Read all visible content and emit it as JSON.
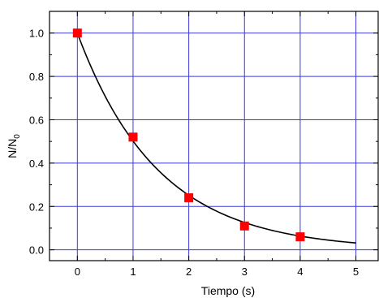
{
  "chart_data": {
    "type": "scatter",
    "title": "",
    "xlabel": "Tiempo (s)",
    "ylabel_main": "N/N",
    "ylabel_sub": "0",
    "xlim": [
      -0.5,
      5.4
    ],
    "ylim": [
      -0.05,
      1.1
    ],
    "x_ticks": [
      0,
      1,
      2,
      3,
      4,
      5
    ],
    "x_tick_labels": [
      "0",
      "1",
      "2",
      "3",
      "4",
      "5"
    ],
    "y_ticks": [
      0.0,
      0.2,
      0.4,
      0.6,
      0.8,
      1.0
    ],
    "y_tick_labels": [
      "0.0",
      "0.2",
      "0.4",
      "0.6",
      "0.8",
      "1.0"
    ],
    "grid": true,
    "series": [
      {
        "type": "scatter",
        "marker": "square",
        "color": "#ff0000",
        "x": [
          0,
          1,
          2,
          3,
          4
        ],
        "y": [
          1.0,
          0.52,
          0.24,
          0.11,
          0.06
        ]
      },
      {
        "type": "line",
        "color": "#000000",
        "function": "exp",
        "decay_rate": 0.69,
        "x_range": [
          0,
          5
        ]
      }
    ]
  },
  "colors": {
    "grid": "#3b3bd6",
    "axis": "#000000",
    "marker": "#ff0000",
    "curve": "#000000"
  }
}
